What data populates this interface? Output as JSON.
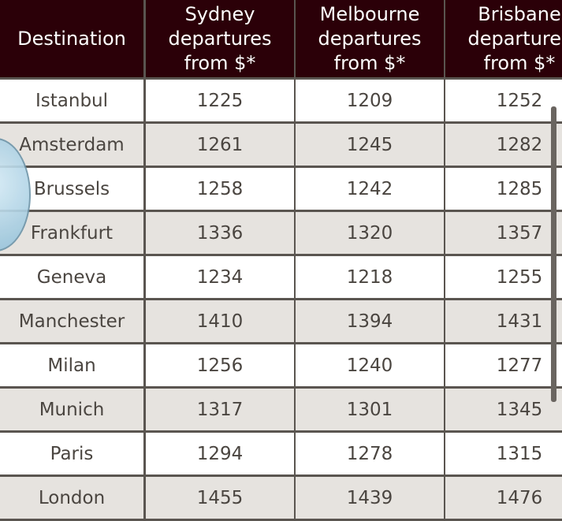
{
  "table": {
    "header": [
      "Destination",
      "Sydney departures from $*",
      "Melbourne departures from $*",
      "Brisbane departures from $*"
    ],
    "rows": [
      [
        "Istanbul",
        "1225",
        "1209",
        "1252"
      ],
      [
        "Amsterdam",
        "1261",
        "1245",
        "1282"
      ],
      [
        "Brussels",
        "1258",
        "1242",
        "1285"
      ],
      [
        "Frankfurt",
        "1336",
        "1320",
        "1357"
      ],
      [
        "Geneva",
        "1234",
        "1218",
        "1255"
      ],
      [
        "Manchester",
        "1410",
        "1394",
        "1431"
      ],
      [
        "Milan",
        "1256",
        "1240",
        "1277"
      ],
      [
        "Munich",
        "1317",
        "1301",
        "1345"
      ],
      [
        "Paris",
        "1294",
        "1278",
        "1315"
      ],
      [
        "London",
        "1455",
        "1439",
        "1476"
      ]
    ]
  }
}
